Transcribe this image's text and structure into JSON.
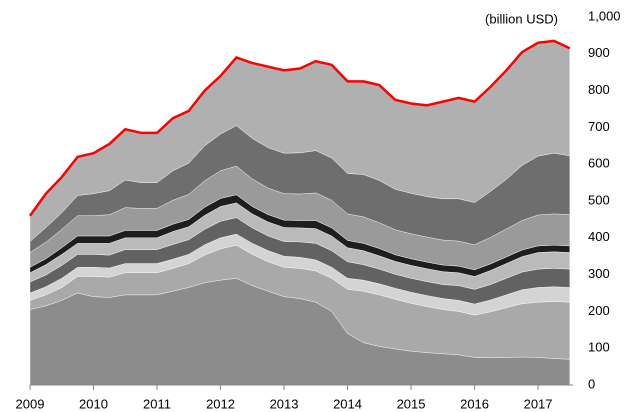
{
  "chart_data": {
    "type": "stacked_area",
    "y_label": "(billion USD)",
    "x": [
      2009,
      2009.25,
      2009.5,
      2009.75,
      2010,
      2010.25,
      2010.5,
      2010.75,
      2011,
      2011.25,
      2011.5,
      2011.75,
      2012,
      2012.25,
      2012.5,
      2012.75,
      2013,
      2013.25,
      2013.5,
      2013.75,
      2014,
      2014.25,
      2014.5,
      2014.75,
      2015,
      2015.25,
      2015.5,
      2015.75,
      2016,
      2016.25,
      2016.5,
      2016.75,
      2017,
      2017.25,
      2017.5
    ],
    "xlim": [
      2009,
      2017.55
    ],
    "xticks": [
      2009,
      2010,
      2011,
      2012,
      2013,
      2014,
      2015,
      2016,
      2017
    ],
    "ylim": [
      0,
      1000
    ],
    "yticks": [
      0,
      100,
      200,
      300,
      400,
      500,
      600,
      700,
      800,
      900,
      {
        "value": 1000,
        "label": "1,000"
      }
    ],
    "outline_color": "#ff0000",
    "series": [
      {
        "color": "#8c8c8c",
        "values": [
          205,
          215,
          230,
          250,
          240,
          238,
          245,
          245,
          245,
          255,
          265,
          278,
          285,
          290,
          270,
          255,
          240,
          235,
          225,
          200,
          140,
          115,
          105,
          98,
          92,
          88,
          85,
          82,
          75,
          74,
          75,
          76,
          75,
          72,
          70
        ]
      },
      {
        "color": "#a9a9a9",
        "values": [
          25,
          30,
          35,
          45,
          55,
          55,
          60,
          60,
          60,
          62,
          65,
          75,
          85,
          90,
          85,
          80,
          80,
          82,
          85,
          90,
          120,
          140,
          140,
          135,
          130,
          125,
          120,
          118,
          115,
          125,
          135,
          145,
          150,
          155,
          155
        ]
      },
      {
        "color": "#d4d4d4",
        "values": [
          20,
          22,
          25,
          25,
          25,
          25,
          25,
          25,
          25,
          25,
          25,
          28,
          30,
          30,
          30,
          30,
          30,
          30,
          30,
          30,
          30,
          30,
          30,
          30,
          30,
          30,
          30,
          30,
          30,
          32,
          35,
          38,
          40,
          40,
          40
        ]
      },
      {
        "color": "#626262",
        "values": [
          30,
          32,
          35,
          35,
          35,
          35,
          38,
          38,
          38,
          40,
          40,
          42,
          45,
          45,
          42,
          40,
          40,
          42,
          45,
          45,
          45,
          42,
          40,
          38,
          38,
          38,
          38,
          40,
          40,
          42,
          45,
          48,
          50,
          50,
          50
        ]
      },
      {
        "color": "#bababa",
        "values": [
          25,
          28,
          30,
          30,
          30,
          32,
          32,
          32,
          32,
          35,
          35,
          38,
          40,
          40,
          38,
          38,
          38,
          38,
          40,
          40,
          38,
          38,
          36,
          35,
          35,
          35,
          35,
          35,
          35,
          38,
          40,
          42,
          45,
          45,
          45
        ]
      },
      {
        "color": "#1e1e1e",
        "values": [
          15,
          16,
          18,
          20,
          20,
          20,
          20,
          20,
          20,
          20,
          20,
          22,
          22,
          22,
          20,
          20,
          20,
          20,
          22,
          22,
          20,
          20,
          20,
          18,
          18,
          18,
          18,
          18,
          18,
          18,
          18,
          18,
          18,
          18,
          18
        ]
      },
      {
        "color": "#9a9a9a",
        "values": [
          40,
          45,
          50,
          55,
          55,
          58,
          62,
          60,
          60,
          65,
          68,
          72,
          75,
          78,
          75,
          72,
          72,
          72,
          75,
          75,
          72,
          72,
          70,
          68,
          68,
          68,
          68,
          68,
          68,
          72,
          76,
          80,
          84,
          85,
          85
        ]
      },
      {
        "color": "#6e6e6e",
        "values": [
          30,
          40,
          45,
          55,
          60,
          65,
          75,
          70,
          70,
          80,
          85,
          95,
          100,
          110,
          110,
          110,
          110,
          112,
          115,
          115,
          110,
          115,
          115,
          110,
          110,
          110,
          112,
          115,
          115,
          125,
          135,
          150,
          160,
          165,
          160
        ]
      },
      {
        "color": "#b0b0b0",
        "values": [
          70,
          92,
          97,
          105,
          110,
          127,
          138,
          135,
          135,
          143,
          142,
          150,
          158,
          185,
          205,
          220,
          225,
          229,
          243,
          253,
          250,
          253,
          259,
          243,
          244,
          248,
          264,
          274,
          274,
          284,
          296,
          308,
          308,
          305,
          292
        ]
      }
    ]
  }
}
